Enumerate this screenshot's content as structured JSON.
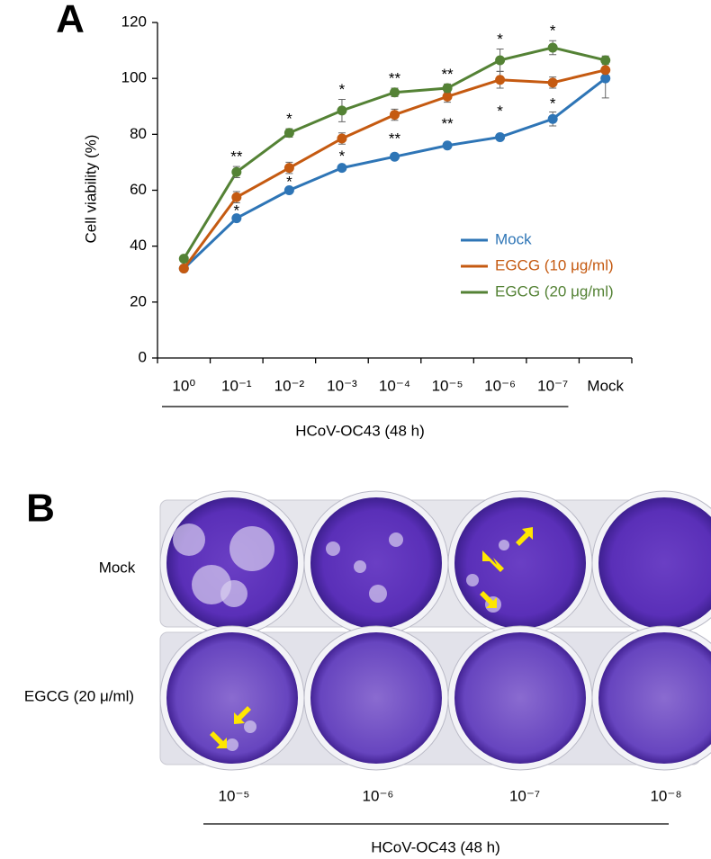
{
  "panel_a_label": "A",
  "chart_data": {
    "type": "line",
    "ylabel": "Cell viability (%)",
    "xlabel": "HCoV-OC43 (48 h)",
    "categories": [
      "10⁰",
      "10⁻¹",
      "10⁻²",
      "10⁻³",
      "10⁻⁴",
      "10⁻⁵",
      "10⁻⁶",
      "10⁻⁷",
      "Mock"
    ],
    "ylim": [
      0,
      120
    ],
    "yticks": [
      0,
      20,
      40,
      60,
      80,
      100,
      120
    ],
    "legend": "right",
    "series": [
      {
        "name": "Mock",
        "color": "#2e75b6",
        "values": [
          32,
          50,
          60,
          68,
          72,
          76,
          79,
          85.5,
          100
        ],
        "errors": [
          0.5,
          1,
          1,
          1,
          1,
          1,
          1,
          2.5,
          7
        ],
        "significance": [
          null,
          "*",
          "*",
          "*",
          "**",
          "**",
          "*",
          "*",
          null
        ]
      },
      {
        "name": "EGCG (10 μg/ml)",
        "color": "#c55a11",
        "values": [
          32,
          57.5,
          68,
          78.5,
          87,
          93.5,
          99.5,
          98.5,
          103
        ],
        "errors": [
          1,
          2,
          2,
          2,
          2,
          2,
          3,
          2,
          1
        ]
      },
      {
        "name": "EGCG (20 μg/ml)",
        "color": "#548235",
        "values": [
          35.5,
          66.5,
          80.5,
          88.5,
          95,
          96.5,
          106.5,
          111,
          106.5
        ],
        "errors": [
          1,
          2,
          1.5,
          4,
          1.5,
          1.5,
          4,
          2.5,
          1.5
        ],
        "significance": [
          null,
          "**",
          "*",
          "*",
          "**",
          "**",
          "*",
          "*",
          null
        ]
      }
    ]
  },
  "panel_b": {
    "label": "B",
    "rows": [
      "Mock",
      "EGCG (20 μ/ml)"
    ],
    "columns": [
      "10⁻⁵",
      "10⁻⁶",
      "10⁻⁷",
      "10⁻⁸"
    ],
    "xlabel": "HCoV-OC43 (48 h)"
  }
}
